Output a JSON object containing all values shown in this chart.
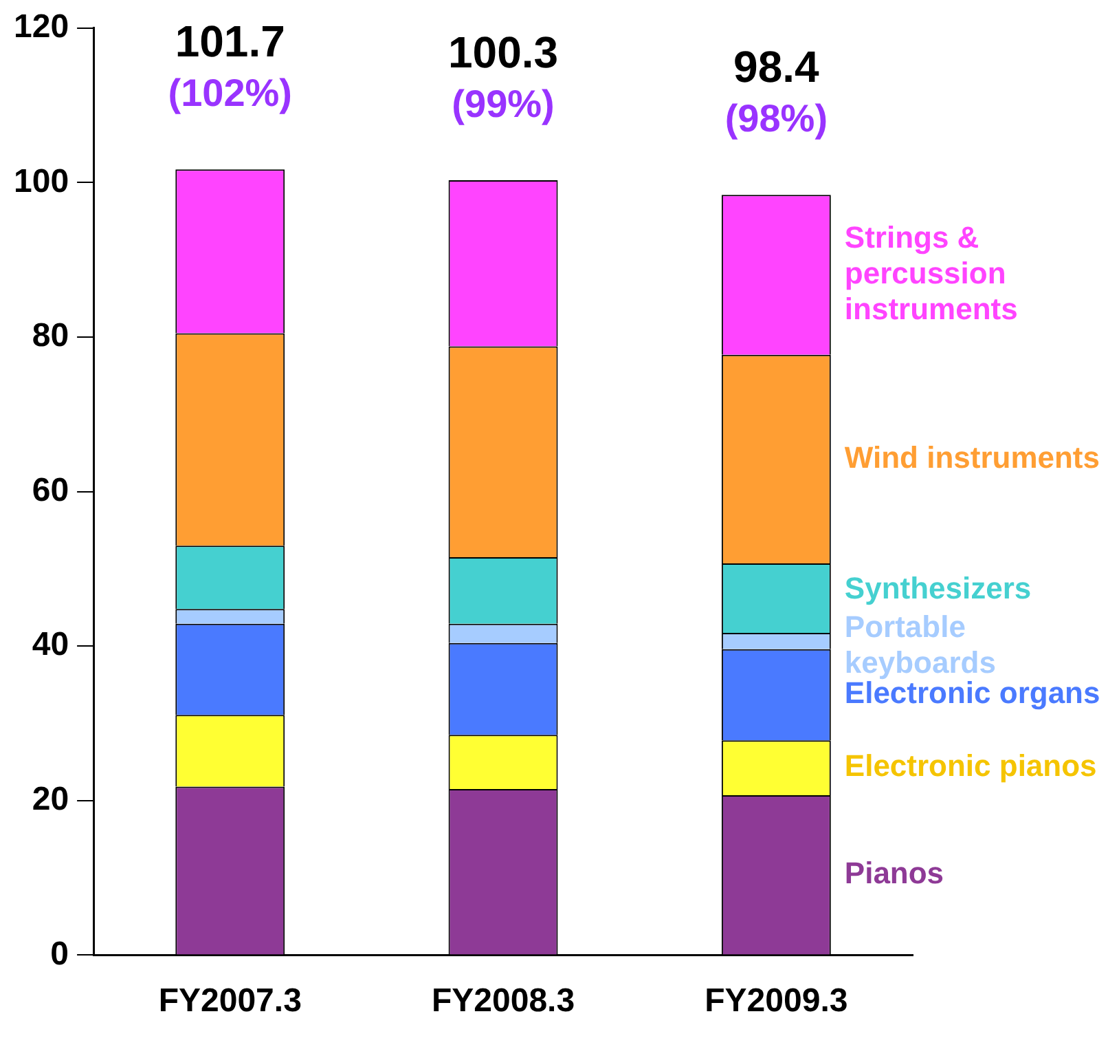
{
  "chart_data": {
    "type": "bar",
    "stacked": true,
    "categories": [
      "FY2007.3",
      "FY2008.3",
      "FY2009.3"
    ],
    "series": [
      {
        "name": "Pianos",
        "color": "#8e3a96",
        "values": [
          21.8,
          21.5,
          20.7
        ]
      },
      {
        "name": "Electronic pianos",
        "color": "#ffff33",
        "values": [
          9.3,
          7.0,
          7.1
        ]
      },
      {
        "name": "Electronic organs",
        "color": "#4a7aff",
        "values": [
          11.8,
          11.9,
          11.8
        ]
      },
      {
        "name": "Portable keyboards",
        "color": "#a6ccff",
        "values": [
          1.9,
          2.5,
          2.1
        ]
      },
      {
        "name": "Synthesizers",
        "color": "#45d0d0",
        "values": [
          8.2,
          8.6,
          9.0
        ]
      },
      {
        "name": "Wind instruments",
        "color": "#ff9e33",
        "values": [
          27.5,
          27.3,
          27.0
        ]
      },
      {
        "name": "Strings & percussion instruments",
        "color": "#ff44ff",
        "values": [
          21.2,
          21.5,
          20.7
        ]
      }
    ],
    "totals": [
      "101.7",
      "100.3",
      "98.4"
    ],
    "annotations": [
      {
        "text": "(102%)",
        "x": "FY2007.3",
        "y": 101.7
      },
      {
        "text": "(99%)",
        "x": "FY2008.3",
        "y": 100.3
      },
      {
        "text": "(98%)",
        "x": "FY2009.3",
        "y": 98.4
      }
    ],
    "ylim": [
      0,
      120
    ],
    "yticks": [
      0,
      20,
      40,
      60,
      80,
      100,
      120
    ],
    "grid": false
  }
}
